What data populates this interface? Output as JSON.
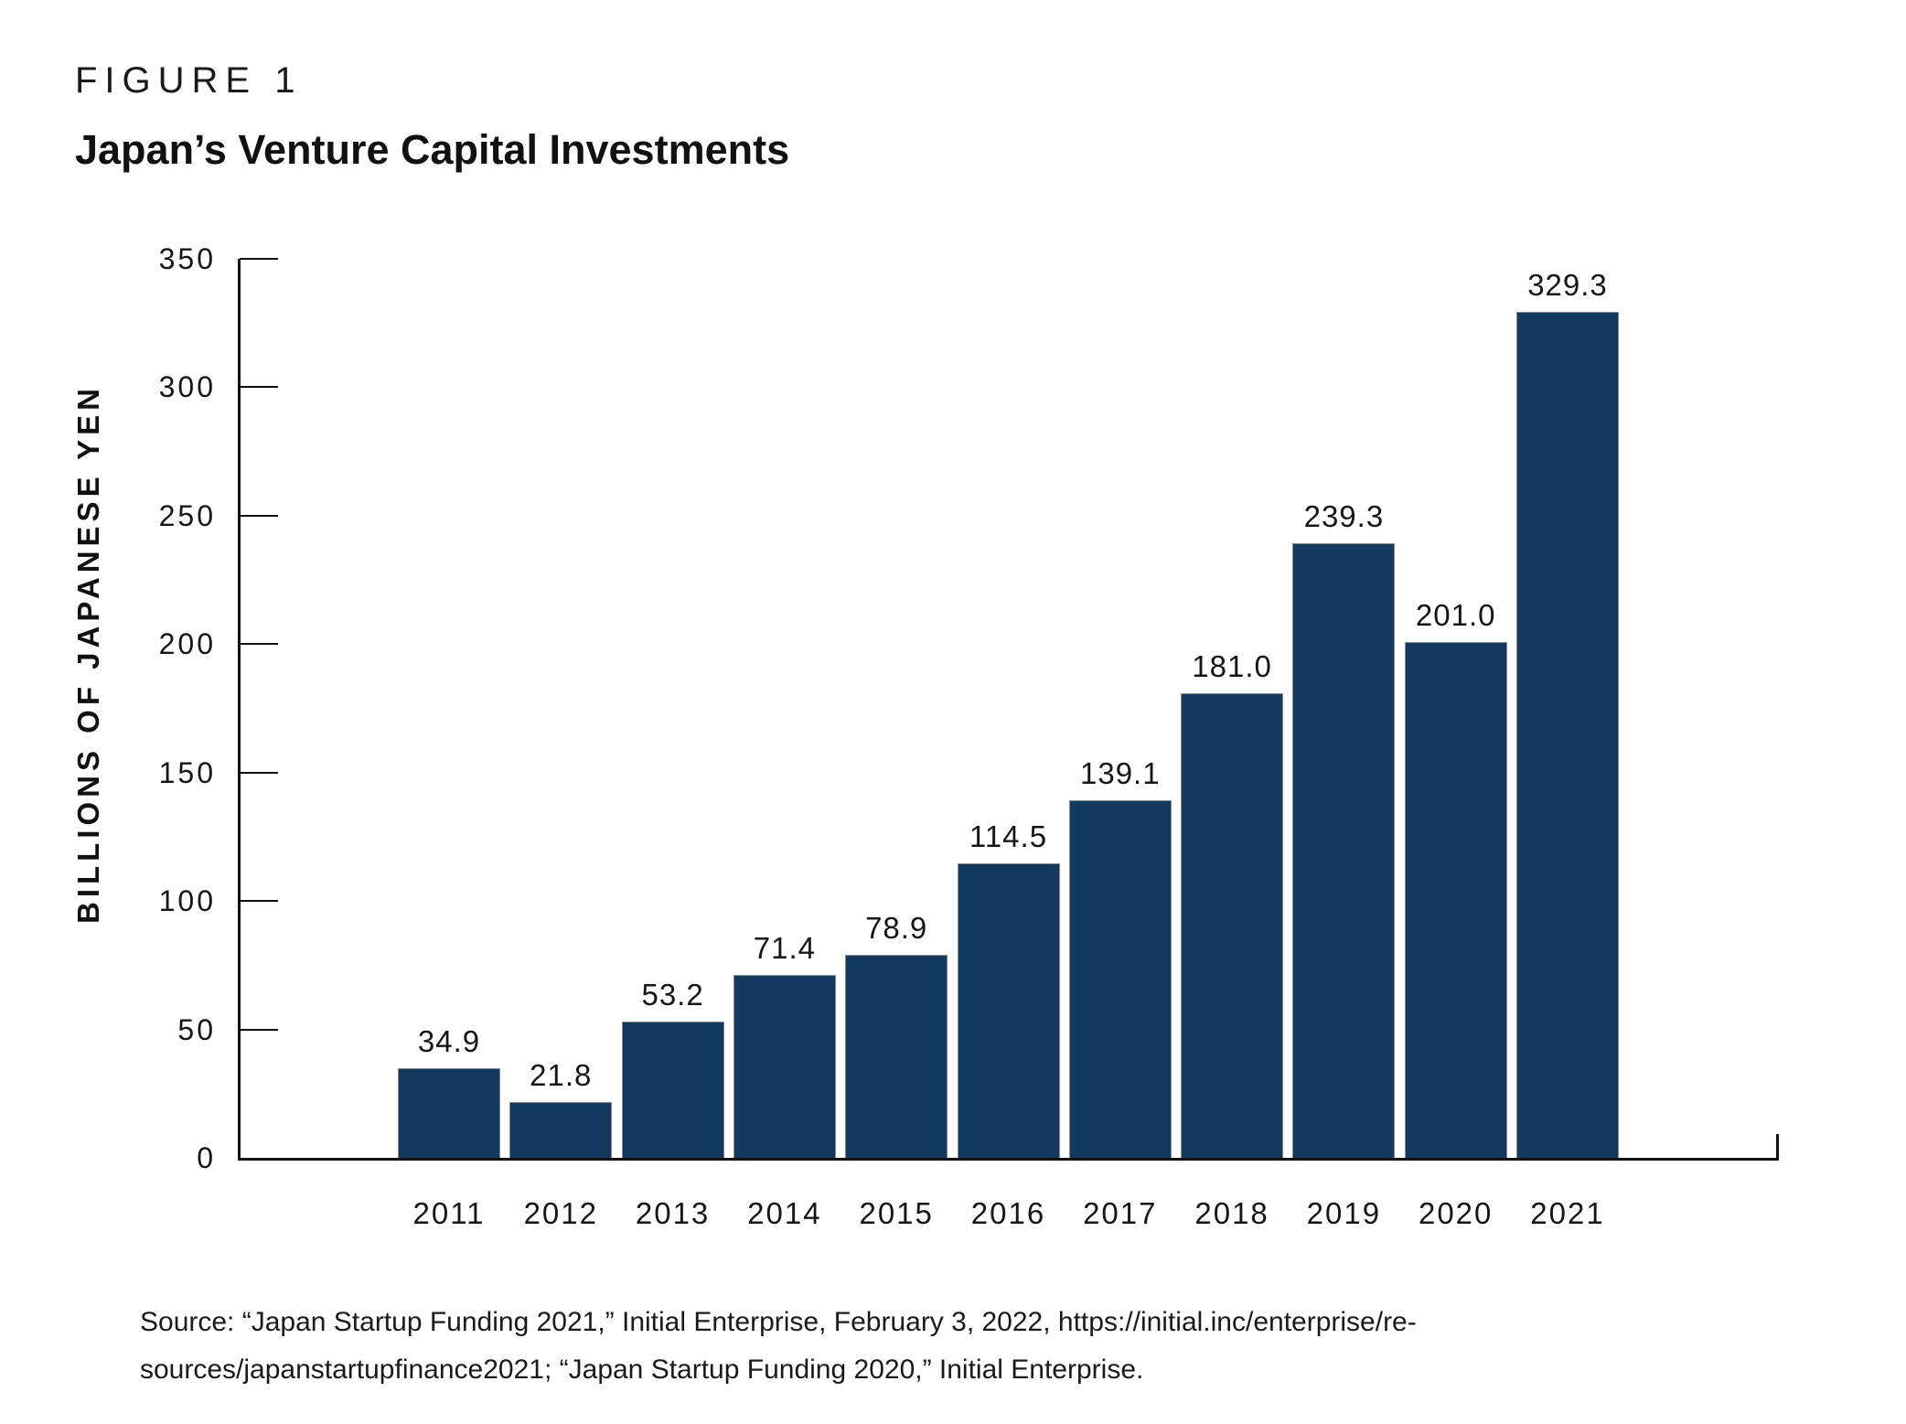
{
  "figure": {
    "label": "FIGURE 1",
    "title": "Japan’s Venture Capital Investments"
  },
  "chart_data": {
    "type": "bar",
    "title": "Japan’s Venture Capital Investments",
    "categories": [
      "2011",
      "2012",
      "2013",
      "2014",
      "2015",
      "2016",
      "2017",
      "2018",
      "2019",
      "2020",
      "2021"
    ],
    "values": [
      34.9,
      21.8,
      53.2,
      71.4,
      78.9,
      114.5,
      139.1,
      181.0,
      239.3,
      201.0,
      329.3
    ],
    "value_labels": [
      "34.9",
      "21.8",
      "53.2",
      "71.4",
      "78.9",
      "114.5",
      "139.1",
      "181.0",
      "239.3",
      "201.0",
      "329.3"
    ],
    "xlabel": "",
    "ylabel": "BILLIONS OF JAPANESE YEN",
    "ylim": [
      0,
      350
    ],
    "yticks": [
      0,
      50,
      100,
      150,
      200,
      250,
      300,
      350
    ],
    "grid": "off",
    "legend": "none",
    "bar_color": "#14395F",
    "bar_border_color": "#8a8a8a",
    "axis_color": "#111111"
  },
  "source": {
    "lines": [
      "Source: “Japan Startup Funding 2021,” Initial Enterprise, February 3, 2022, https://initial.inc/enterprise/re-",
      "sources/japanstartupfinance2021; “Japan Startup Funding 2020,” Initial Enterprise."
    ]
  }
}
